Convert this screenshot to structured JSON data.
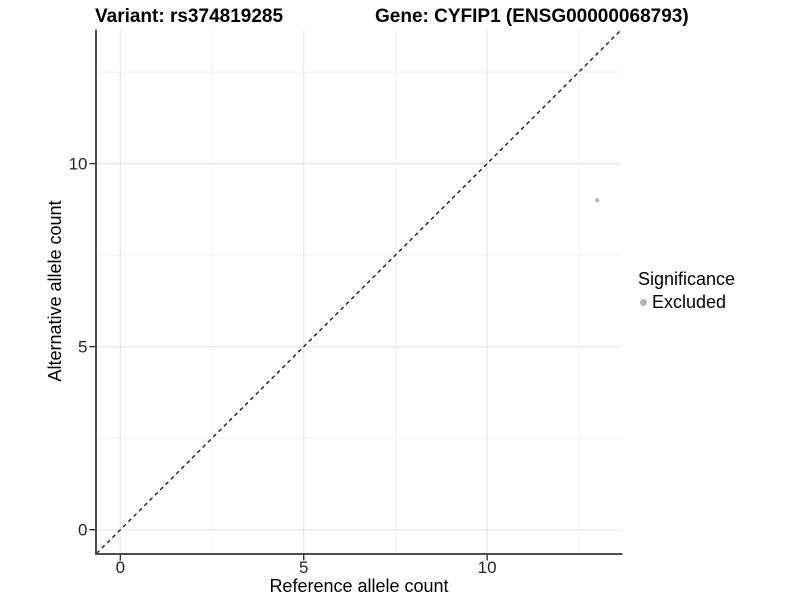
{
  "titles": {
    "variant": "Variant: rs374819285",
    "gene": "Gene: CYFIP1 (ENSG00000068793)"
  },
  "chart_data": {
    "type": "scatter",
    "title_left": "Variant: rs374819285",
    "title_right": "Gene: CYFIP1 (ENSG00000068793)",
    "xlabel": "Reference allele count",
    "ylabel": "Alternative allele count",
    "xlim": [
      -0.65,
      13.65
    ],
    "ylim": [
      -0.65,
      13.65
    ],
    "x_ticks": [
      0,
      5,
      10
    ],
    "y_ticks": [
      0,
      5,
      10
    ],
    "x_minor_ticks": [
      2.5,
      7.5,
      12.5
    ],
    "y_minor_ticks": [
      2.5,
      7.5,
      12.5
    ],
    "grid": "major and minor, light grey, white panel",
    "identity_line": {
      "style": "dashed",
      "equation": "y = x",
      "color": "#111111"
    },
    "series": [
      {
        "name": "Excluded",
        "color": "#bebebe",
        "points": [
          [
            13,
            9
          ]
        ]
      }
    ],
    "legend": {
      "title": "Significance",
      "position": "right",
      "entries": [
        {
          "label": "Excluded",
          "color": "#b3b3b3"
        }
      ]
    }
  },
  "colors": {
    "axis_line": "#4d4d4d",
    "tick_mark": "#333333",
    "tick_label": "#262626",
    "grid_major": "#e7e7e7",
    "grid_minor": "#f1f1f1",
    "dashed_line": "#111111",
    "point": "#bebebe"
  }
}
